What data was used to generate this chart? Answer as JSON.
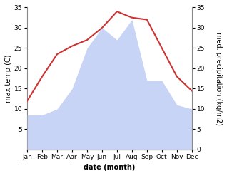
{
  "months": [
    "Jan",
    "Feb",
    "Mar",
    "Apr",
    "May",
    "Jun",
    "Jul",
    "Aug",
    "Sep",
    "Oct",
    "Nov",
    "Dec"
  ],
  "temp": [
    12,
    18,
    23.5,
    25.5,
    27,
    30,
    34,
    32.5,
    32,
    25,
    18,
    14.5
  ],
  "precip": [
    8.5,
    8.5,
    10,
    15,
    25,
    30,
    27,
    32,
    17,
    17,
    11,
    10
  ],
  "temp_color": "#cc3333",
  "precip_fill_color": "#c8d4f5",
  "ylim_left": [
    0,
    35
  ],
  "ylim_right": [
    0,
    35
  ],
  "yticks_left": [
    5,
    10,
    15,
    20,
    25,
    30,
    35
  ],
  "yticks_right": [
    0,
    5,
    10,
    15,
    20,
    25,
    30,
    35
  ],
  "xlabel": "date (month)",
  "ylabel_left": "max temp (C)",
  "ylabel_right": "med. precipitation (kg/m2)",
  "bg_color": "#ffffff",
  "label_fontsize": 7,
  "tick_fontsize": 6.5
}
